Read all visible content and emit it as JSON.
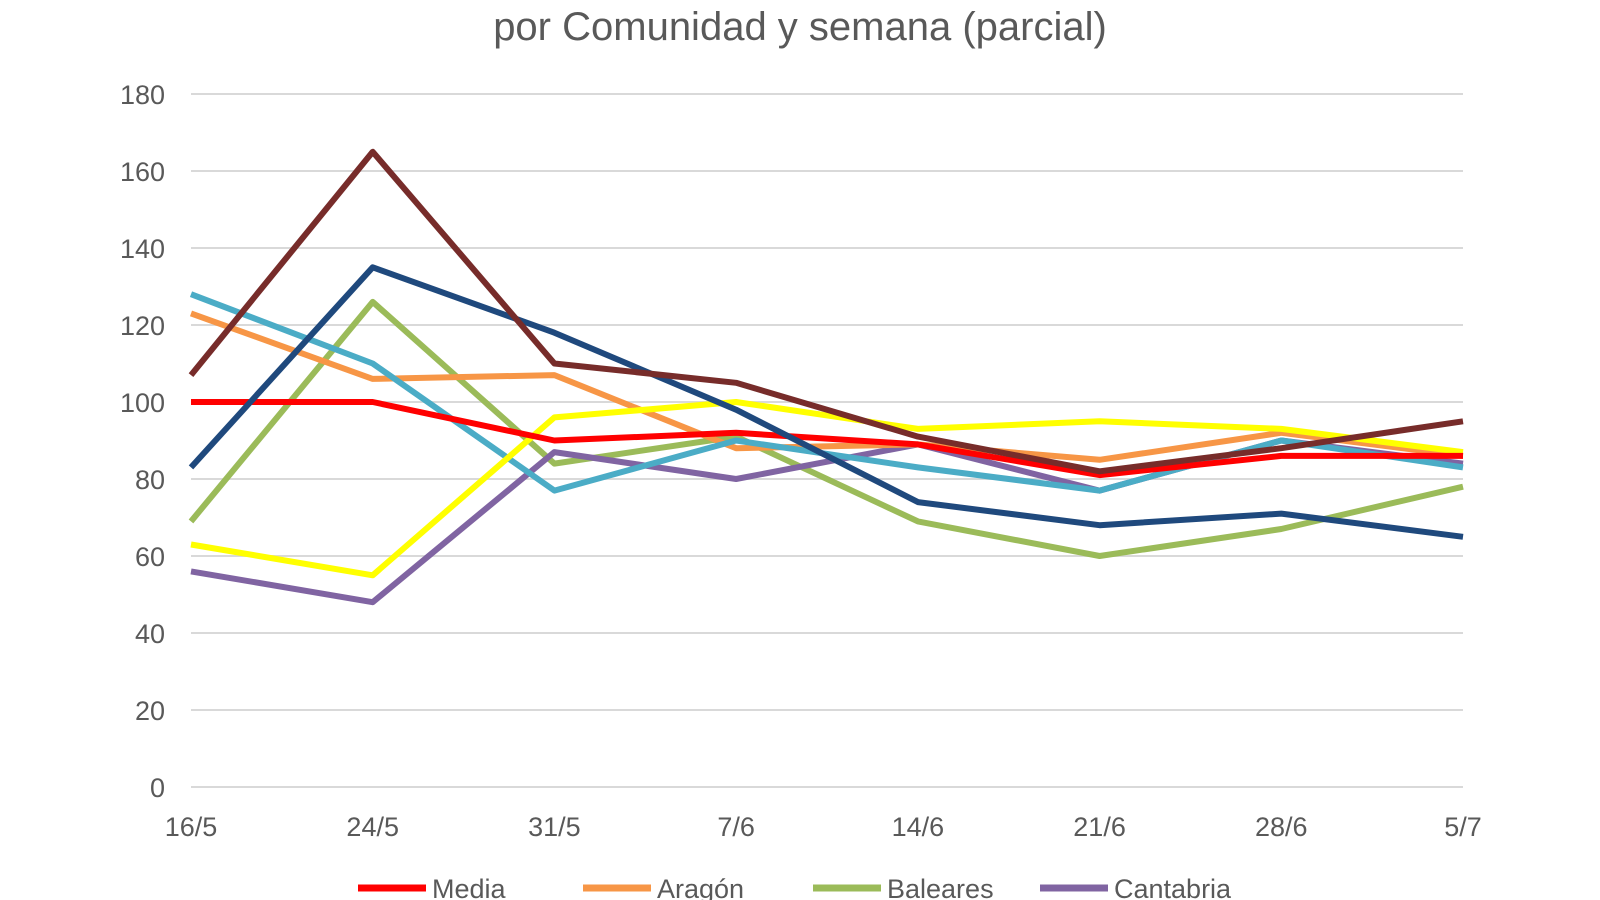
{
  "chart_data": {
    "type": "line",
    "title": "por Comunidad y semana (parcial)",
    "xlabel": "",
    "ylabel": "",
    "ylim": [
      0,
      180
    ],
    "yticks": [
      0,
      20,
      40,
      60,
      80,
      100,
      120,
      140,
      160,
      180
    ],
    "categories": [
      "16/5",
      "24/5",
      "31/5",
      "7/6",
      "14/6",
      "21/6",
      "28/6",
      "5/7"
    ],
    "grid": true,
    "legend_position": "bottom",
    "series": [
      {
        "name": "Baleares",
        "color": "#9bbb59",
        "in_legend": true,
        "values": [
          69,
          126,
          84,
          91,
          69,
          60,
          67,
          78
        ]
      },
      {
        "name": "Cantabria",
        "color": "#8064a2",
        "in_legend": true,
        "values": [
          56,
          48,
          87,
          80,
          89,
          77,
          90,
          84
        ]
      },
      {
        "name": "Aragón",
        "color": "#f79646",
        "in_legend": true,
        "values": [
          123,
          106,
          107,
          88,
          89,
          85,
          92,
          86
        ]
      },
      {
        "name": "",
        "color": "#4bacc6",
        "in_legend": false,
        "values": [
          128,
          110,
          77,
          90,
          83,
          77,
          90,
          83
        ]
      },
      {
        "name": "",
        "color": "#ffff00",
        "in_legend": false,
        "values": [
          63,
          55,
          96,
          100,
          93,
          95,
          93,
          87
        ]
      },
      {
        "name": "Media",
        "color": "#ff0000",
        "in_legend": true,
        "values": [
          100,
          100,
          90,
          92,
          89,
          81,
          86,
          86
        ]
      },
      {
        "name": "",
        "color": "#1f497d",
        "in_legend": false,
        "values": [
          83,
          135,
          118,
          98,
          74,
          68,
          71,
          65
        ]
      },
      {
        "name": "",
        "color": "#772c2a",
        "in_legend": false,
        "values": [
          107,
          165,
          110,
          105,
          91,
          82,
          88,
          95
        ]
      }
    ],
    "legend": [
      {
        "name": "Media",
        "color": "#ff0000"
      },
      {
        "name": "Aragón",
        "color": "#f79646"
      },
      {
        "name": "Baleares",
        "color": "#9bbb59"
      },
      {
        "name": "Cantabria",
        "color": "#8064a2"
      }
    ]
  }
}
